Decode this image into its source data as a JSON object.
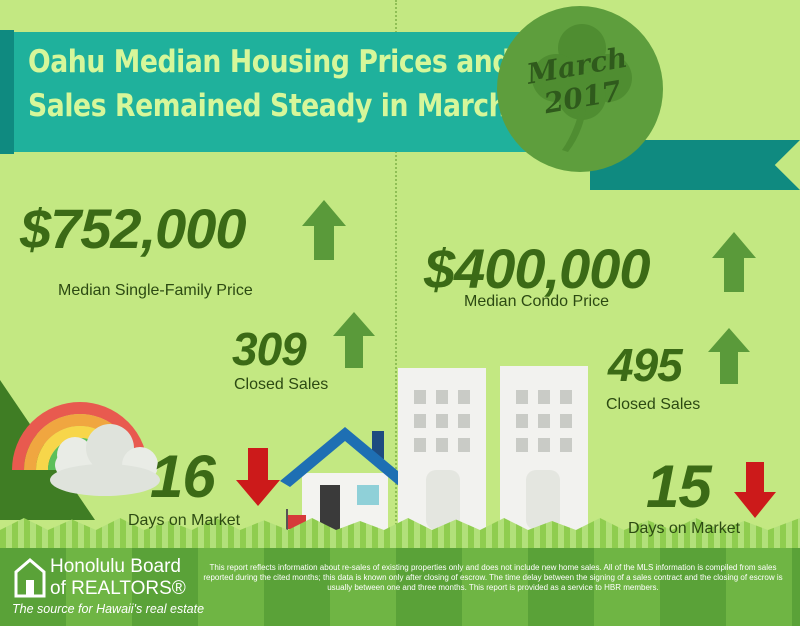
{
  "header": {
    "title_line1": "Oahu Median Housing Prices and",
    "title_line2": "Sales Remained Steady in March",
    "badge_month": "March",
    "badge_year": "2017"
  },
  "stats": {
    "single_family_price": {
      "value": "$752,000",
      "label": "Median Single-Family Price",
      "trend": "up"
    },
    "single_family_sales": {
      "value": "309",
      "label": "Closed Sales",
      "trend": "up"
    },
    "single_family_days": {
      "value": "16",
      "label": "Days on Market",
      "trend": "down"
    },
    "condo_price": {
      "value": "$400,000",
      "label": "Median Condo Price",
      "trend": "up"
    },
    "condo_sales": {
      "value": "495",
      "label": "Closed Sales",
      "trend": "up"
    },
    "condo_days": {
      "value": "15",
      "label": "Days on Market",
      "trend": "down"
    }
  },
  "colors": {
    "up_arrow": "#5a9a3a",
    "down_arrow": "#cc1a1a",
    "banner": "#1fb19c"
  },
  "footer": {
    "logo_line1": "Honolulu Board",
    "logo_line2": "of REALTORS®",
    "logo_tagline": "The source for Hawaii's real estate",
    "disclaimer": "This report reflects information about re-sales of existing properties only and does not include new home sales. All of the MLS information is compiled from sales reported during the cited months; this data is known only after closing of escrow. The time delay between the signing of a sales contract and the closing of escrow is usually between one and three months. This report is provided as a service to HBR members."
  }
}
